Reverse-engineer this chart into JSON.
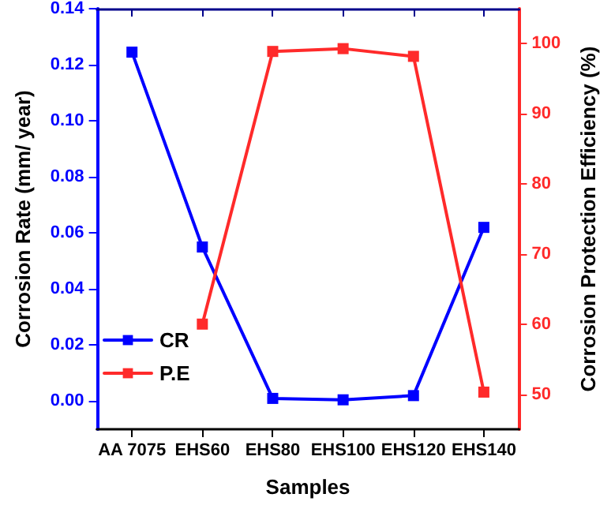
{
  "chart_data": {
    "type": "line",
    "xlabel": "Samples",
    "ylabel": "Corrosion Rate (mm/ year)",
    "y2label": "Corrosion Protection Efficiency (%)",
    "categories": [
      "AA 7075",
      "EHS60",
      "EHS80",
      "EHS100",
      "EHS120",
      "EHS140"
    ],
    "series": [
      {
        "name": "CR",
        "color": "#0000ff",
        "values": [
          0.1245,
          0.055,
          0.001,
          0.0005,
          0.002,
          0.062
        ]
      },
      {
        "name": "P.E",
        "color": "#ff2a2a",
        "axis": "y2",
        "values": [
          null,
          60,
          98.9,
          99.3,
          98.2,
          50.3
        ]
      }
    ],
    "ylim": [
      -0.01,
      0.14
    ],
    "yticks": [
      {
        "value": 0,
        "label": "0.00"
      },
      {
        "value": 0.02,
        "label": "0.02"
      },
      {
        "value": 0.04,
        "label": "0.04"
      },
      {
        "value": 0.06,
        "label": "0.06"
      },
      {
        "value": 0.08,
        "label": "0.08"
      },
      {
        "value": 0.1,
        "label": "0.10"
      },
      {
        "value": 0.12,
        "label": "0.12"
      },
      {
        "value": 0.14,
        "label": "0.14"
      }
    ],
    "y2lim": [
      45,
      105
    ],
    "y2ticks": [
      50,
      60,
      70,
      80,
      90,
      100
    ],
    "legend": "bottom left",
    "marker": "square",
    "line_style": "solid",
    "grid": false
  }
}
